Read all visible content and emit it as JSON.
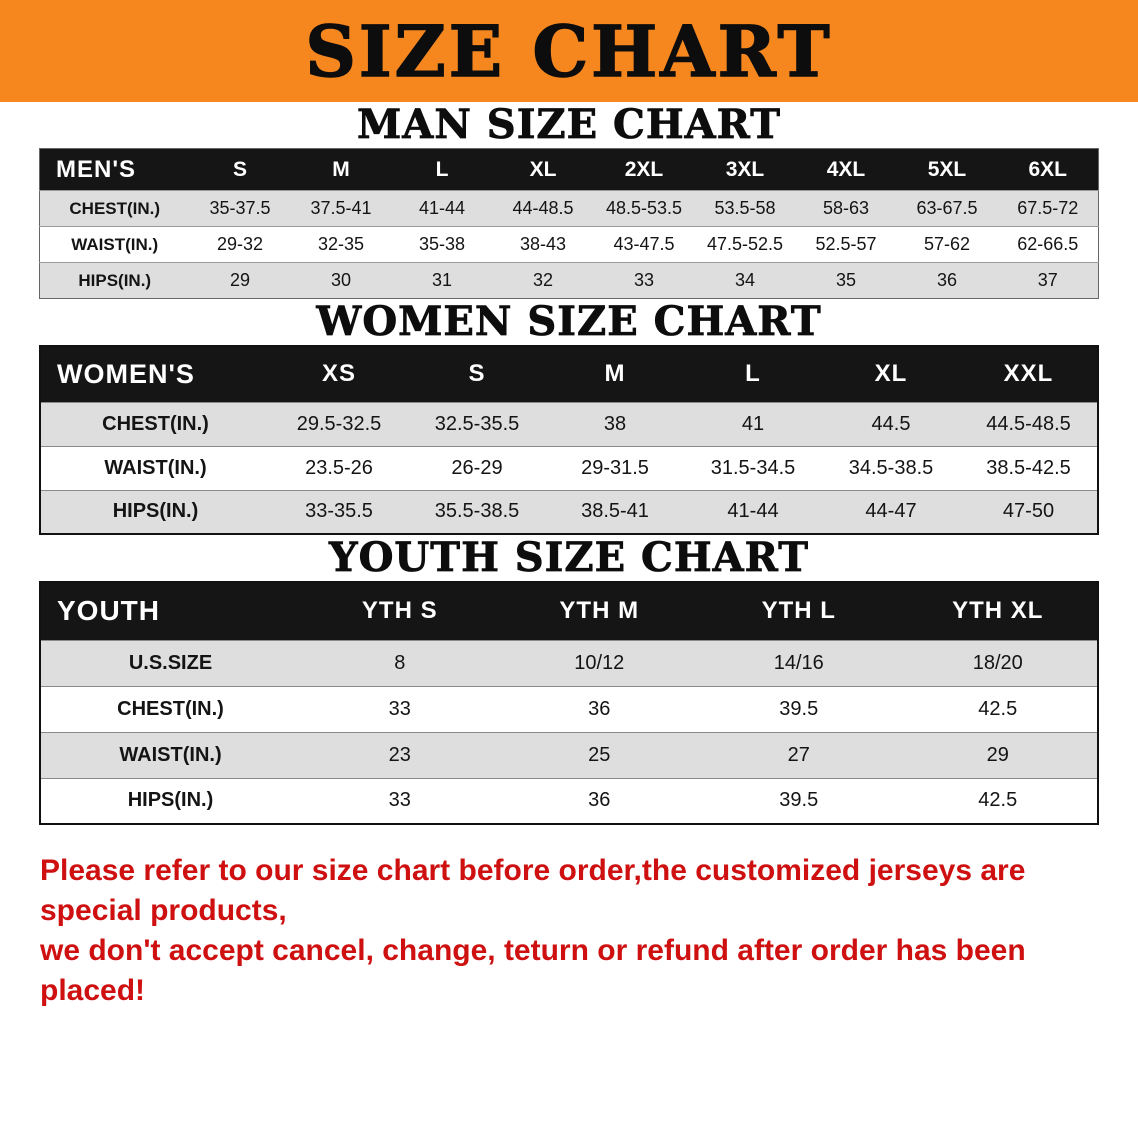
{
  "banner": {
    "title": "SIZE CHART",
    "bg_color": "#f6871f"
  },
  "colors": {
    "table_header_bg": "#151515",
    "row_alt": "#dedede",
    "disclaimer_red": "#cf1010"
  },
  "sections": [
    {
      "heading": "MAN SIZE CHART",
      "table": {
        "header": [
          "MEN'S",
          "S",
          "M",
          "L",
          "XL",
          "2XL",
          "3XL",
          "4XL",
          "5XL",
          "6XL"
        ],
        "rows": [
          {
            "label": "CHEST(IN.)",
            "values": [
              "35-37.5",
              "37.5-41",
              "41-44",
              "44-48.5",
              "48.5-53.5",
              "53.5-58",
              "58-63",
              "63-67.5",
              "67.5-72"
            ]
          },
          {
            "label": "WAIST(IN.)",
            "values": [
              "29-32",
              "32-35",
              "35-38",
              "38-43",
              "43-47.5",
              "47.5-52.5",
              "52.5-57",
              "57-62",
              "62-66.5"
            ]
          },
          {
            "label": "HIPS(IN.)",
            "values": [
              "29",
              "30",
              "31",
              "32",
              "33",
              "34",
              "35",
              "36",
              "37"
            ]
          }
        ]
      }
    },
    {
      "heading": "WOMEN SIZE CHART",
      "table": {
        "header": [
          "WOMEN'S",
          "XS",
          "S",
          "M",
          "L",
          "XL",
          "XXL"
        ],
        "rows": [
          {
            "label": "CHEST(IN.)",
            "values": [
              "29.5-32.5",
              "32.5-35.5",
              "38",
              "41",
              "44.5",
              "44.5-48.5"
            ]
          },
          {
            "label": "WAIST(IN.)",
            "values": [
              "23.5-26",
              "26-29",
              "29-31.5",
              "31.5-34.5",
              "34.5-38.5",
              "38.5-42.5"
            ]
          },
          {
            "label": "HIPS(IN.)",
            "values": [
              "33-35.5",
              "35.5-38.5",
              "38.5-41",
              "41-44",
              "44-47",
              "47-50"
            ]
          }
        ]
      }
    },
    {
      "heading": "YOUTH SIZE CHART",
      "table": {
        "header": [
          "YOUTH",
          "YTH S",
          "YTH M",
          "YTH L",
          "YTH XL"
        ],
        "rows": [
          {
            "label": "U.S.SIZE",
            "values": [
              "8",
              "10/12",
              "14/16",
              "18/20"
            ]
          },
          {
            "label": "CHEST(IN.)",
            "values": [
              "33",
              "36",
              "39.5",
              "42.5"
            ]
          },
          {
            "label": "WAIST(IN.)",
            "values": [
              "23",
              "25",
              "27",
              "29"
            ]
          },
          {
            "label": "HIPS(IN.)",
            "values": [
              "33",
              "36",
              "39.5",
              "42.5"
            ]
          }
        ]
      }
    }
  ],
  "disclaimer": {
    "line1": "Please refer to our size chart before order,the customized jerseys are special products,",
    "line2": "we don't accept cancel, change, teturn or refund after order has been placed!"
  }
}
